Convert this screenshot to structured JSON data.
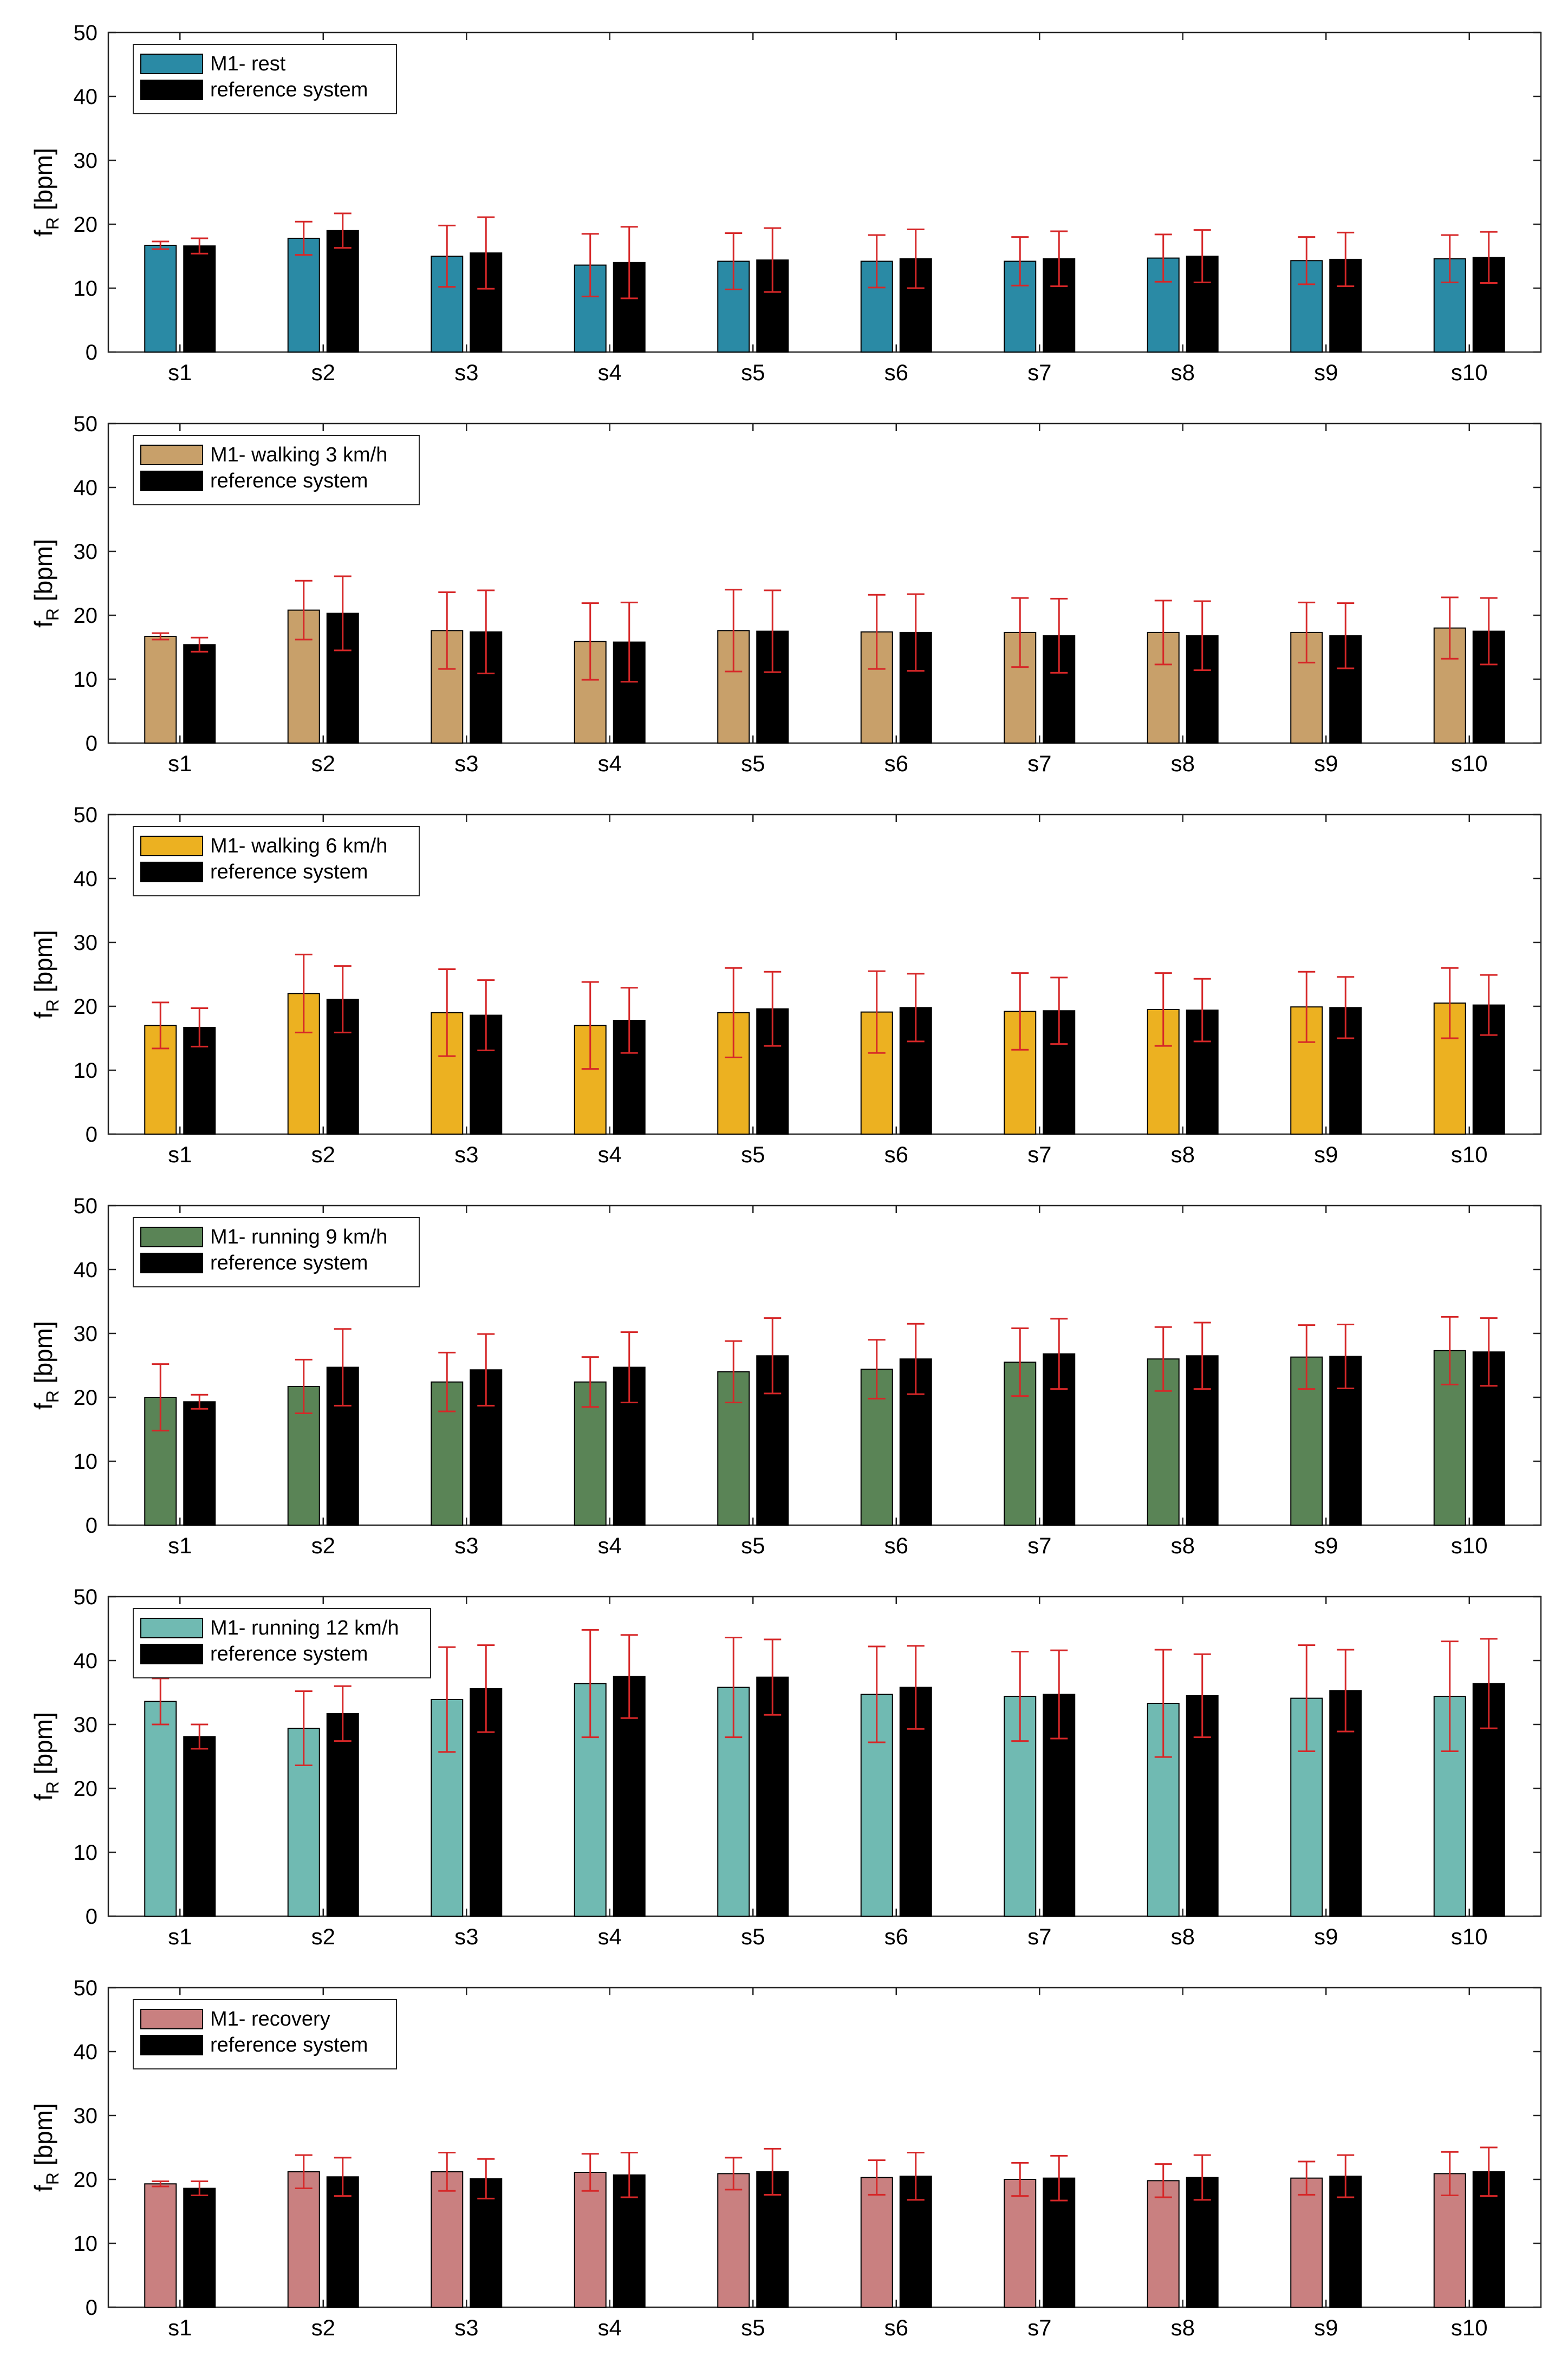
{
  "figure": {
    "id": "fR-by-subject"
  },
  "chart_data": [
    {
      "type": "bar",
      "categories": [
        "s1",
        "s2",
        "s3",
        "s4",
        "s5",
        "s6",
        "s7",
        "s8",
        "s9",
        "s10"
      ],
      "ylabel_main": "f",
      "ylabel_sub": "R",
      "ylabel_unit": "[bpm]",
      "ylim": [
        0,
        50
      ],
      "yticks": [
        0,
        10,
        20,
        30,
        40,
        50
      ],
      "legend_position": "top-left",
      "grid": false,
      "series": [
        {
          "name": "M1- rest",
          "color": "#2a8aa5",
          "values": [
            16.7,
            17.8,
            15.0,
            13.6,
            14.2,
            14.2,
            14.2,
            14.7,
            14.3,
            14.6
          ],
          "errors": [
            0.6,
            2.6,
            4.8,
            4.9,
            4.4,
            4.1,
            3.8,
            3.7,
            3.7,
            3.7
          ]
        },
        {
          "name": "reference system",
          "color": "#000000",
          "values": [
            16.6,
            19.0,
            15.5,
            14.0,
            14.4,
            14.6,
            14.6,
            15.0,
            14.5,
            14.8
          ],
          "errors": [
            1.2,
            2.7,
            5.6,
            5.6,
            5.0,
            4.6,
            4.3,
            4.1,
            4.2,
            4.0
          ]
        }
      ]
    },
    {
      "type": "bar",
      "categories": [
        "s1",
        "s2",
        "s3",
        "s4",
        "s5",
        "s6",
        "s7",
        "s8",
        "s9",
        "s10"
      ],
      "ylabel_main": "f",
      "ylabel_sub": "R",
      "ylabel_unit": "[bpm]",
      "ylim": [
        0,
        50
      ],
      "yticks": [
        0,
        10,
        20,
        30,
        40,
        50
      ],
      "legend_position": "top-left",
      "grid": false,
      "series": [
        {
          "name": "M1- walking 3 km/h",
          "color": "#c8a06a",
          "values": [
            16.7,
            20.8,
            17.6,
            15.9,
            17.6,
            17.4,
            17.3,
            17.3,
            17.3,
            18.0
          ],
          "errors": [
            0.5,
            4.6,
            6.0,
            6.0,
            6.4,
            5.8,
            5.4,
            5.0,
            4.7,
            4.8
          ]
        },
        {
          "name": "reference system",
          "color": "#000000",
          "values": [
            15.4,
            20.3,
            17.4,
            15.8,
            17.5,
            17.3,
            16.8,
            16.8,
            16.8,
            17.5
          ],
          "errors": [
            1.1,
            5.8,
            6.5,
            6.2,
            6.4,
            6.0,
            5.8,
            5.4,
            5.1,
            5.2
          ]
        }
      ]
    },
    {
      "type": "bar",
      "categories": [
        "s1",
        "s2",
        "s3",
        "s4",
        "s5",
        "s6",
        "s7",
        "s8",
        "s9",
        "s10"
      ],
      "ylabel_main": "f",
      "ylabel_sub": "R",
      "ylabel_unit": "[bpm]",
      "ylim": [
        0,
        50
      ],
      "yticks": [
        0,
        10,
        20,
        30,
        40,
        50
      ],
      "legend_position": "top-left",
      "grid": false,
      "series": [
        {
          "name": "M1- walking 6 km/h",
          "color": "#ecb121",
          "values": [
            17.0,
            22.0,
            19.0,
            17.0,
            19.0,
            19.1,
            19.2,
            19.5,
            19.9,
            20.5
          ],
          "errors": [
            3.6,
            6.1,
            6.8,
            6.8,
            7.0,
            6.4,
            6.0,
            5.7,
            5.5,
            5.5
          ]
        },
        {
          "name": "reference system",
          "color": "#000000",
          "values": [
            16.7,
            21.1,
            18.6,
            17.8,
            19.6,
            19.8,
            19.3,
            19.4,
            19.8,
            20.2
          ],
          "errors": [
            3.0,
            5.2,
            5.5,
            5.1,
            5.8,
            5.3,
            5.2,
            4.9,
            4.8,
            4.7
          ]
        }
      ]
    },
    {
      "type": "bar",
      "categories": [
        "s1",
        "s2",
        "s3",
        "s4",
        "s5",
        "s6",
        "s7",
        "s8",
        "s9",
        "s10"
      ],
      "ylabel_main": "f",
      "ylabel_sub": "R",
      "ylabel_unit": "[bpm]",
      "ylim": [
        0,
        50
      ],
      "yticks": [
        0,
        10,
        20,
        30,
        40,
        50
      ],
      "legend_position": "top-left",
      "grid": false,
      "series": [
        {
          "name": "M1- running 9 km/h",
          "color": "#5a8456",
          "values": [
            20.0,
            21.7,
            22.4,
            22.4,
            24.0,
            24.4,
            25.5,
            26.0,
            26.3,
            27.3
          ],
          "errors": [
            5.2,
            4.2,
            4.6,
            3.9,
            4.8,
            4.6,
            5.3,
            5.0,
            5.0,
            5.3
          ]
        },
        {
          "name": "reference system",
          "color": "#000000",
          "values": [
            19.3,
            24.7,
            24.3,
            24.7,
            26.5,
            26.0,
            26.8,
            26.5,
            26.4,
            27.1
          ],
          "errors": [
            1.1,
            6.0,
            5.6,
            5.5,
            5.9,
            5.5,
            5.5,
            5.2,
            5.0,
            5.3
          ]
        }
      ]
    },
    {
      "type": "bar",
      "categories": [
        "s1",
        "s2",
        "s3",
        "s4",
        "s5",
        "s6",
        "s7",
        "s8",
        "s9",
        "s10"
      ],
      "ylabel_main": "f",
      "ylabel_sub": "R",
      "ylabel_unit": "[bpm]",
      "ylim": [
        0,
        50
      ],
      "yticks": [
        0,
        10,
        20,
        30,
        40,
        50
      ],
      "legend_position": "top-left",
      "grid": false,
      "series": [
        {
          "name": "M1- running 12 km/h",
          "color": "#70bab2",
          "values": [
            33.6,
            29.4,
            33.9,
            36.4,
            35.8,
            34.7,
            34.4,
            33.3,
            34.1,
            34.4
          ],
          "errors": [
            3.6,
            5.8,
            8.2,
            8.4,
            7.8,
            7.5,
            7.0,
            8.4,
            8.3,
            8.6
          ]
        },
        {
          "name": "reference system",
          "color": "#000000",
          "values": [
            28.1,
            31.7,
            35.6,
            37.5,
            37.4,
            35.8,
            34.7,
            34.5,
            35.3,
            36.4
          ],
          "errors": [
            1.9,
            4.3,
            6.8,
            6.5,
            5.9,
            6.5,
            6.9,
            6.5,
            6.4,
            7.0
          ]
        }
      ]
    },
    {
      "type": "bar",
      "categories": [
        "s1",
        "s2",
        "s3",
        "s4",
        "s5",
        "s6",
        "s7",
        "s8",
        "s9",
        "s10"
      ],
      "ylabel_main": "f",
      "ylabel_sub": "R",
      "ylabel_unit": "[bpm]",
      "ylim": [
        0,
        50
      ],
      "yticks": [
        0,
        10,
        20,
        30,
        40,
        50
      ],
      "legend_position": "top-left",
      "grid": false,
      "series": [
        {
          "name": "M1- recovery",
          "color": "#c98080",
          "values": [
            19.3,
            21.2,
            21.2,
            21.1,
            20.9,
            20.3,
            20.0,
            19.8,
            20.2,
            20.9
          ],
          "errors": [
            0.4,
            2.6,
            3.0,
            2.9,
            2.5,
            2.7,
            2.6,
            2.6,
            2.6,
            3.4
          ]
        },
        {
          "name": "reference system",
          "color": "#000000",
          "values": [
            18.6,
            20.4,
            20.1,
            20.7,
            21.2,
            20.5,
            20.2,
            20.3,
            20.5,
            21.2
          ],
          "errors": [
            1.1,
            3.0,
            3.1,
            3.5,
            3.6,
            3.7,
            3.5,
            3.5,
            3.3,
            3.8
          ]
        }
      ]
    }
  ]
}
